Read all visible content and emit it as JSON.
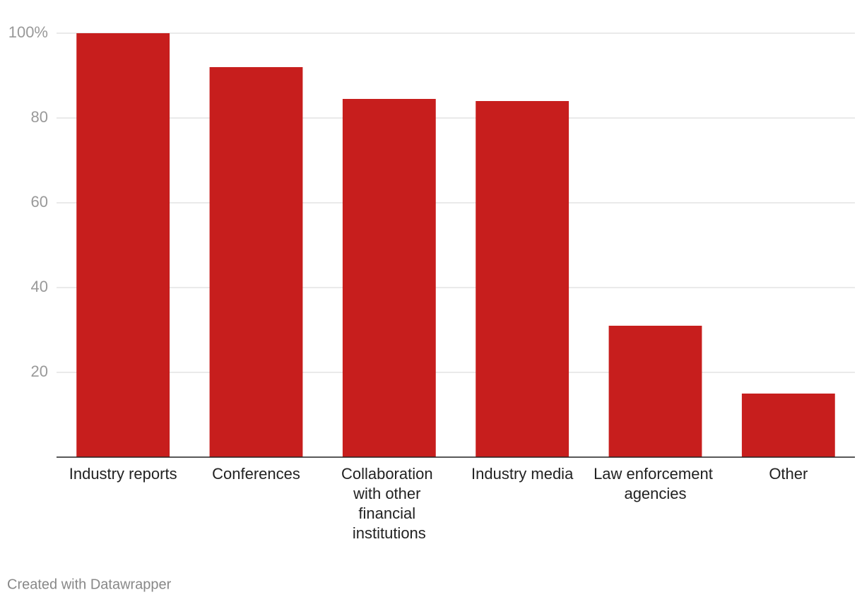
{
  "chart_data": {
    "type": "bar",
    "categories": [
      "Industry reports",
      "Conferences",
      "Collaboration with other financial institutions",
      "Industry media",
      "Law enforcement agencies",
      "Other"
    ],
    "values": [
      100,
      92,
      84.5,
      84,
      31,
      15
    ],
    "color": "#c71e1d",
    "ylim": [
      0,
      100
    ],
    "yticks": [
      20,
      40,
      60,
      80,
      {
        "value": 100,
        "label": "100%"
      }
    ],
    "grid": true,
    "footer": "Created with Datawrapper"
  }
}
